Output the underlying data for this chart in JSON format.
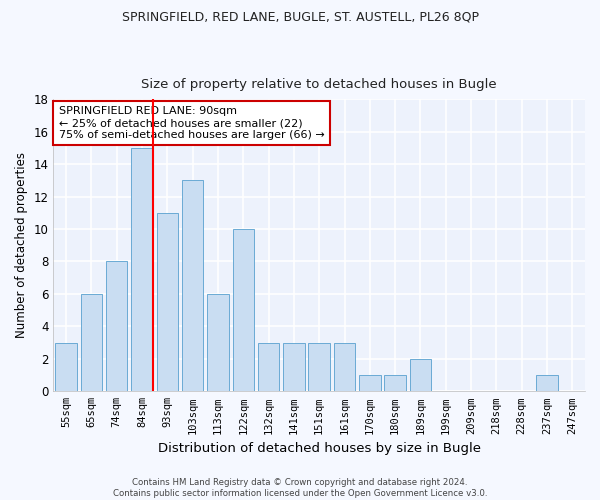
{
  "title1": "SPRINGFIELD, RED LANE, BUGLE, ST. AUSTELL, PL26 8QP",
  "title2": "Size of property relative to detached houses in Bugle",
  "xlabel": "Distribution of detached houses by size in Bugle",
  "ylabel": "Number of detached properties",
  "categories": [
    "55sqm",
    "65sqm",
    "74sqm",
    "84sqm",
    "93sqm",
    "103sqm",
    "113sqm",
    "122sqm",
    "132sqm",
    "141sqm",
    "151sqm",
    "161sqm",
    "170sqm",
    "180sqm",
    "189sqm",
    "199sqm",
    "209sqm",
    "218sqm",
    "228sqm",
    "237sqm",
    "247sqm"
  ],
  "values": [
    3,
    6,
    8,
    15,
    11,
    13,
    6,
    10,
    3,
    3,
    3,
    3,
    1,
    1,
    2,
    0,
    0,
    0,
    0,
    1,
    0
  ],
  "bar_color": "#c9ddf2",
  "bar_edge_color": "#6aaad4",
  "annotation_line1": "SPRINGFIELD RED LANE: 90sqm",
  "annotation_line2": "← 25% of detached houses are smaller (22)",
  "annotation_line3": "75% of semi-detached houses are larger (66) →",
  "footer1": "Contains HM Land Registry data © Crown copyright and database right 2024.",
  "footer2": "Contains public sector information licensed under the Open Government Licence v3.0.",
  "ylim": [
    0,
    18
  ],
  "yticks": [
    0,
    2,
    4,
    6,
    8,
    10,
    12,
    14,
    16,
    18
  ],
  "bg_color": "#f5f8ff",
  "plot_bg_color": "#edf2fc",
  "grid_color": "#ffffff",
  "annotation_box_color": "#ffffff",
  "annotation_box_edge": "#cc0000"
}
